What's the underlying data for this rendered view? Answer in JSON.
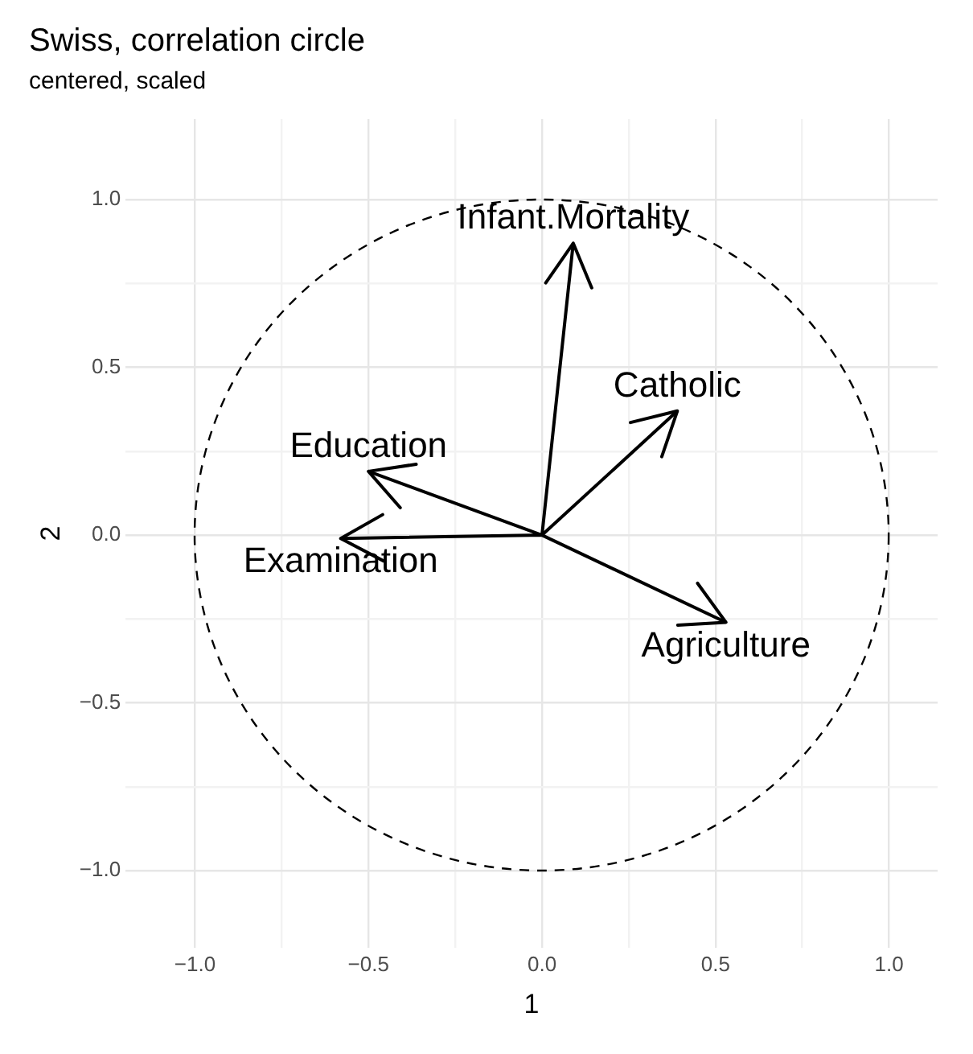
{
  "chart_data": {
    "type": "line",
    "title": "Swiss, correlation circle",
    "subtitle": "centered, scaled",
    "xlabel": "1",
    "ylabel": "2",
    "xlim": [
      -1.2,
      1.14
    ],
    "ylim": [
      -1.23,
      1.24
    ],
    "xticks": [
      {
        "value": -1,
        "label": "−1.0"
      },
      {
        "value": -0.75,
        "label": null
      },
      {
        "value": -0.5,
        "label": "−0.5"
      },
      {
        "value": -0.25,
        "label": null
      },
      {
        "value": 0,
        "label": "0.0"
      },
      {
        "value": 0.25,
        "label": null
      },
      {
        "value": 0.5,
        "label": "0.5"
      },
      {
        "value": 0.75,
        "label": null
      },
      {
        "value": 1,
        "label": "1.0"
      }
    ],
    "yticks": [
      {
        "value": -1,
        "label": "−1.0"
      },
      {
        "value": -0.75,
        "label": null
      },
      {
        "value": -0.5,
        "label": "−0.5"
      },
      {
        "value": -0.25,
        "label": null
      },
      {
        "value": 0,
        "label": "0.0"
      },
      {
        "value": 0.25,
        "label": null
      },
      {
        "value": 0.5,
        "label": "0.5"
      },
      {
        "value": 0.75,
        "label": null
      },
      {
        "value": 1,
        "label": "1.0"
      }
    ],
    "grid": true,
    "legend": false,
    "marker": "none",
    "series": [
      {
        "color": "#000000",
        "line_style": "solid",
        "x": [
          0,
          0.53,
          null,
          0,
          -0.58,
          null,
          0,
          -0.5,
          null,
          0,
          0.39,
          null,
          0,
          0.09
        ],
        "values": [
          0,
          -0.26,
          null,
          0,
          -0.01,
          null,
          0,
          0.19,
          null,
          0,
          0.37,
          null,
          0,
          0.87
        ]
      }
    ],
    "annotations": [
      {
        "text": "Agriculture",
        "x": 0.53,
        "y": -0.26
      },
      {
        "text": "Examination",
        "x": -0.58,
        "y": -0.01
      },
      {
        "text": "Education",
        "x": -0.5,
        "y": 0.19
      },
      {
        "text": "Catholic",
        "x": 0.39,
        "y": 0.37
      },
      {
        "text": "Infant.Mortality",
        "x": 0.09,
        "y": 0.87
      }
    ]
  }
}
